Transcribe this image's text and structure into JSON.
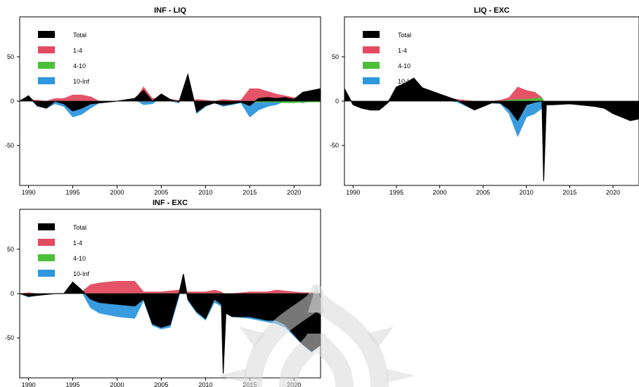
{
  "colors": {
    "total": "#000000",
    "m1_4": "#e34a5f",
    "m4_10": "#4cbf3a",
    "m10_inf": "#2e97dd",
    "axis": "#000000",
    "watermark": "#d9d9d9"
  },
  "watermark": {
    "icon": "sunburst-watermark-icon"
  },
  "chart_data": [
    {
      "type": "area",
      "title": "INF - LIQ",
      "xlabel": "",
      "ylabel": "",
      "xlim": [
        1989,
        2023
      ],
      "ylim": [
        -95,
        95
      ],
      "x_ticks": [
        1990,
        1995,
        2000,
        2005,
        2010,
        2015,
        2020
      ],
      "x_tick_labels": [
        "1990",
        "1995",
        "2000",
        "2005",
        "2010",
        "2015",
        "2020"
      ],
      "y_ticks": [
        50,
        0,
        -50
      ],
      "y_tick_labels": [
        "50",
        "0",
        "-50"
      ],
      "grid": false,
      "legend": {
        "position": "top-left",
        "entries": [
          "Total",
          "1-4",
          "4-10",
          "10-Inf"
        ]
      },
      "x": [
        1989,
        1990,
        1991,
        1992,
        1993,
        1994,
        1995,
        1996,
        1997,
        1998,
        2000,
        2002,
        2003,
        2004,
        2005,
        2006,
        2007,
        2008,
        2009,
        2010,
        2011,
        2012,
        2013,
        2014,
        2015,
        2016,
        2017,
        2018,
        2019,
        2020,
        2021,
        2022,
        2023
      ],
      "series": [
        {
          "name": "10-Inf",
          "values": [
            0,
            4,
            -6,
            -8,
            -3,
            -6,
            -18,
            -15,
            -8,
            -2,
            0,
            2,
            -4,
            -3,
            4,
            0,
            -2,
            30,
            -14,
            -6,
            -2,
            -6,
            -4,
            -2,
            -18,
            -10,
            -6,
            -4,
            0,
            0,
            -2,
            0,
            0
          ]
        },
        {
          "name": "1-4",
          "values": [
            0,
            2,
            1,
            0,
            3,
            3,
            7,
            7,
            5,
            0,
            0,
            1,
            16,
            3,
            4,
            2,
            1,
            0,
            2,
            1,
            0,
            2,
            1,
            1,
            14,
            14,
            11,
            8,
            6,
            4,
            3,
            3,
            2
          ]
        },
        {
          "name": "4-10",
          "values": [
            0,
            0,
            0,
            0,
            0,
            0,
            0,
            0,
            0,
            0,
            0,
            0,
            0,
            0,
            0,
            0,
            0,
            0,
            0,
            0,
            0,
            0,
            0,
            0,
            -1,
            -1,
            -1,
            -1,
            -2,
            -2,
            -1,
            -1,
            -1
          ]
        },
        {
          "name": "Total",
          "values": [
            0,
            6,
            -5,
            -8,
            0,
            -3,
            -11,
            -8,
            -3,
            -2,
            0,
            3,
            12,
            0,
            8,
            2,
            -1,
            30,
            -12,
            -5,
            -2,
            -4,
            -3,
            -1,
            -5,
            3,
            4,
            3,
            4,
            2,
            10,
            12,
            14
          ]
        }
      ]
    },
    {
      "type": "area",
      "title": "LIQ - EXC",
      "xlabel": "",
      "ylabel": "",
      "xlim": [
        1989,
        2023
      ],
      "ylim": [
        -95,
        95
      ],
      "x_ticks": [
        1990,
        1995,
        2000,
        2005,
        2010,
        2015,
        2020
      ],
      "x_tick_labels": [
        "1990",
        "1995",
        "2000",
        "2005",
        "2010",
        "2015",
        "2020"
      ],
      "y_ticks": [
        50,
        0,
        -50
      ],
      "y_tick_labels": [
        "50",
        "0",
        "-50"
      ],
      "grid": false,
      "legend": {
        "position": "top-left",
        "entries": [
          "Total",
          "1-4",
          "4-10",
          "10-Inf"
        ]
      },
      "x": [
        1989,
        1990,
        1991,
        1992,
        1993,
        1994,
        1995,
        1996,
        1997,
        1998,
        2000,
        2002,
        2004,
        2005,
        2006,
        2007,
        2008,
        2009,
        2010,
        2011,
        2011.8,
        2012,
        2012.3,
        2013,
        2015,
        2017,
        2018,
        2019,
        2020,
        2021,
        2022,
        2023
      ],
      "series": [
        {
          "name": "10-Inf",
          "values": [
            0,
            0,
            -2,
            -4,
            -6,
            0,
            12,
            14,
            6,
            3,
            2,
            -1,
            -10,
            -6,
            -2,
            -3,
            -14,
            -40,
            -18,
            -14,
            -8,
            -30,
            -4,
            -4,
            -3,
            -5,
            -6,
            -8,
            -14,
            -18,
            -22,
            -20
          ]
        },
        {
          "name": "1-4",
          "values": [
            14,
            -4,
            -6,
            -6,
            -4,
            -2,
            4,
            6,
            20,
            12,
            6,
            2,
            0,
            0,
            0,
            1,
            4,
            16,
            12,
            10,
            4,
            0,
            0,
            0,
            0,
            0,
            0,
            0,
            0,
            0,
            0,
            0
          ]
        },
        {
          "name": "4-10",
          "values": [
            0,
            0,
            0,
            0,
            0,
            0,
            0,
            0,
            0,
            0,
            0,
            0,
            0,
            0,
            0,
            0,
            1,
            2,
            2,
            3,
            4,
            0,
            0,
            0,
            0,
            0,
            0,
            0,
            0,
            0,
            0,
            0
          ]
        },
        {
          "name": "Total",
          "values": [
            14,
            -4,
            -8,
            -10,
            -10,
            -2,
            16,
            20,
            26,
            15,
            8,
            1,
            -10,
            -6,
            -2,
            -2,
            -9,
            -22,
            -4,
            -1,
            0,
            -90,
            -4,
            -4,
            -3,
            -5,
            -6,
            -8,
            -14,
            -18,
            -22,
            -20
          ]
        }
      ]
    },
    {
      "type": "area",
      "title": "INF - EXC",
      "xlabel": "",
      "ylabel": "",
      "xlim": [
        1989,
        2023
      ],
      "ylim": [
        -95,
        95
      ],
      "x_ticks": [
        1990,
        1995,
        2000,
        2005,
        2010,
        2015,
        2020
      ],
      "x_tick_labels": [
        "1990",
        "1995",
        "2000",
        "2005",
        "2010",
        "2015",
        "2020"
      ],
      "y_ticks": [
        50,
        0,
        -50
      ],
      "y_tick_labels": [
        "50",
        "0",
        "-50"
      ],
      "grid": false,
      "legend": {
        "position": "top-left",
        "entries": [
          "Total",
          "1-4",
          "4-10",
          "10-Inf"
        ]
      },
      "x": [
        1989,
        1990,
        1991,
        1992,
        1993,
        1994,
        1995,
        1996,
        1997,
        1998,
        2000,
        2002,
        2003,
        2004,
        2005,
        2006,
        2007,
        2007.5,
        2008,
        2009,
        2010,
        2011,
        2011.8,
        2012,
        2012.3,
        2013,
        2015,
        2017,
        2018,
        2019,
        2020,
        2021,
        2022,
        2023
      ],
      "series": [
        {
          "name": "10-Inf",
          "values": [
            0,
            -4,
            -2,
            -1,
            0,
            0,
            12,
            2,
            -16,
            -22,
            -26,
            -28,
            -8,
            -36,
            -40,
            -38,
            -4,
            20,
            -8,
            -22,
            -30,
            -10,
            -14,
            -18,
            -22,
            -26,
            -28,
            -32,
            -34,
            -38,
            -48,
            -58,
            -66,
            -58
          ]
        },
        {
          "name": "1-4",
          "values": [
            0,
            1,
            0,
            0,
            0,
            0,
            1,
            2,
            10,
            12,
            14,
            14,
            2,
            2,
            2,
            3,
            4,
            2,
            2,
            2,
            2,
            4,
            2,
            0,
            0,
            0,
            2,
            2,
            4,
            3,
            2,
            1,
            1,
            0
          ]
        },
        {
          "name": "4-10",
          "values": [
            0,
            0,
            0,
            0,
            0,
            0,
            0,
            0,
            0,
            0,
            0,
            0,
            0,
            0,
            0,
            0,
            0,
            0,
            0,
            0,
            0,
            0,
            0,
            0,
            0,
            0,
            0,
            0,
            0,
            0,
            0,
            0,
            0,
            0
          ]
        },
        {
          "name": "Total",
          "values": [
            0,
            -3,
            -2,
            -1,
            0,
            0,
            13,
            4,
            -6,
            -10,
            -12,
            -14,
            -6,
            -34,
            -38,
            -35,
            0,
            22,
            -6,
            -20,
            -28,
            -6,
            -12,
            -90,
            -22,
            -26,
            -26,
            -30,
            -30,
            -35,
            -46,
            -57,
            -65,
            -58
          ]
        }
      ]
    }
  ]
}
